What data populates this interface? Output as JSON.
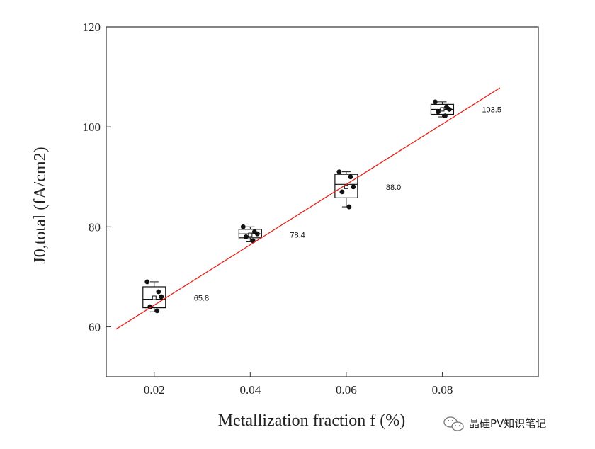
{
  "chart_data": {
    "type": "box",
    "title": "",
    "xlabel": "Metallization fraction f (%)",
    "ylabel": "J0,total (fA/cm2)",
    "xlim": [
      0.01,
      0.1
    ],
    "ylim": [
      50,
      120
    ],
    "xticks": [
      "0.02",
      "0.04",
      "0.06",
      "0.08"
    ],
    "yticks": [
      "60",
      "80",
      "100",
      "120"
    ],
    "grid": false,
    "boxes": [
      {
        "x": 0.02,
        "q1": 63.8,
        "median": 65.5,
        "q3": 68.0,
        "min": 63.0,
        "max": 69.0,
        "mean": 65.8,
        "points": [
          69.0,
          67.0,
          66.0,
          64.0,
          63.2
        ],
        "label": "65.8"
      },
      {
        "x": 0.04,
        "q1": 77.8,
        "median": 78.6,
        "q3": 79.5,
        "min": 77.0,
        "max": 80.0,
        "mean": 78.4,
        "points": [
          80.0,
          79.0,
          78.6,
          78.0,
          77.2
        ],
        "label": "78.4"
      },
      {
        "x": 0.06,
        "q1": 85.8,
        "median": 88.5,
        "q3": 90.5,
        "min": 84.0,
        "max": 91.0,
        "mean": 88.0,
        "points": [
          91.0,
          90.0,
          88.0,
          87.0,
          84.0
        ],
        "label": "88.0"
      },
      {
        "x": 0.08,
        "q1": 102.5,
        "median": 103.5,
        "q3": 104.5,
        "min": 102.0,
        "max": 105.0,
        "mean": 103.5,
        "points": [
          105.0,
          104.0,
          103.5,
          103.0,
          102.2
        ],
        "label": "103.5"
      }
    ],
    "fit_line": {
      "x": [
        0.012,
        0.092
      ],
      "y": [
        59.5,
        107.8
      ],
      "color": "#e8211b"
    }
  },
  "watermark": {
    "text": "晶硅PV知识笔记",
    "icon": "wechat-icon"
  }
}
